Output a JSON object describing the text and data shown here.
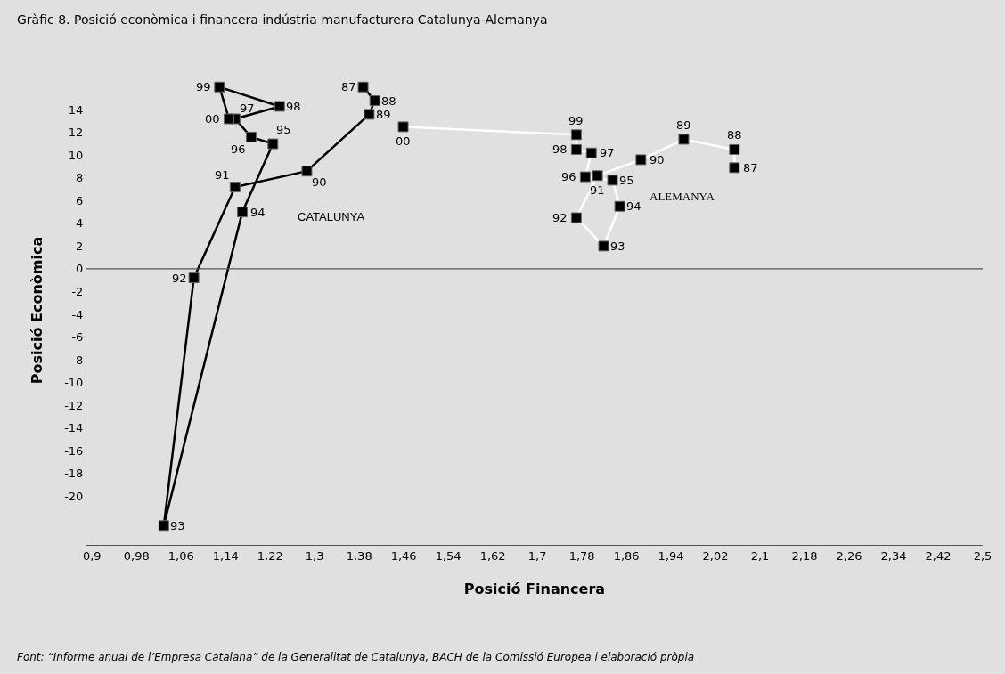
{
  "chart_data": {
    "type": "line",
    "title": "Gràfic 8. Posició econòmica i financera indústria manufacturera Catalunya-Alemanya",
    "xlabel": "Posició Financera",
    "ylabel": "Posició Econòmica",
    "series": [
      {
        "name": "CATALUNYA",
        "color": "#000000",
        "x": [
          1.387,
          1.408,
          1.398,
          1.286,
          1.157,
          1.083,
          1.029,
          1.17,
          1.225,
          1.186,
          1.157,
          1.237,
          1.129,
          1.146
        ],
        "values": [
          16.0,
          14.8,
          13.6,
          8.6,
          7.2,
          -0.8,
          -22.6,
          5.0,
          11.0,
          11.6,
          13.2,
          14.3,
          16.0,
          13.2
        ]
      },
      {
        "name": "ALEMANYA",
        "color": "#ffffff",
        "x": [
          2.054,
          2.054,
          1.963,
          1.886,
          1.808,
          1.77,
          1.819,
          1.848,
          1.835,
          1.786,
          1.797,
          1.77,
          1.77,
          1.459
        ],
        "values": [
          8.9,
          10.5,
          11.4,
          9.6,
          8.2,
          4.5,
          2.0,
          5.5,
          7.8,
          8.1,
          10.2,
          10.5,
          11.8,
          12.5
        ]
      }
    ],
    "xlim": [
      0.89,
      2.5
    ],
    "xticks": [
      {
        "value": 0.9,
        "label": "0,9"
      },
      {
        "value": 0.98,
        "label": "0,98"
      },
      {
        "value": 1.06,
        "label": "1,06"
      },
      {
        "value": 1.14,
        "label": "1,14"
      },
      {
        "value": 1.22,
        "label": "1,22"
      },
      {
        "value": 1.3,
        "label": "1,3"
      },
      {
        "value": 1.38,
        "label": "1,38"
      },
      {
        "value": 1.46,
        "label": "1,46"
      },
      {
        "value": 1.54,
        "label": "1,54"
      },
      {
        "value": 1.62,
        "label": "1,62"
      },
      {
        "value": 1.7,
        "label": "1,7"
      },
      {
        "value": 1.78,
        "label": "1,78"
      },
      {
        "value": 1.86,
        "label": "1,86"
      },
      {
        "value": 1.94,
        "label": "1,94"
      },
      {
        "value": 2.02,
        "label": "2,02"
      },
      {
        "value": 2.1,
        "label": "2,1"
      },
      {
        "value": 2.18,
        "label": "2,18"
      },
      {
        "value": 2.26,
        "label": "2,26"
      },
      {
        "value": 2.34,
        "label": "2,34"
      },
      {
        "value": 2.42,
        "label": "2,42"
      },
      {
        "value": 2.5,
        "label": "2,5"
      }
    ],
    "ylim": [
      -24.3,
      17
    ],
    "yticks": [
      -20,
      -18,
      -16,
      -14,
      -12,
      -10,
      -8,
      -6,
      -4,
      -2,
      0,
      2,
      4,
      6,
      8,
      10,
      12,
      14
    ],
    "ref_lines": [
      {
        "axis": "y",
        "value": 0,
        "color": "#555555"
      }
    ],
    "marker": "square",
    "line_style": "solid",
    "grid": false,
    "legend": false,
    "annotations": [
      {
        "text": "87",
        "x": 1.387,
        "y": 16.0
      },
      {
        "text": "88",
        "x": 1.408,
        "y": 14.8
      },
      {
        "text": "89",
        "x": 1.398,
        "y": 13.6
      },
      {
        "text": "90",
        "x": 1.286,
        "y": 8.6
      },
      {
        "text": "91",
        "x": 1.157,
        "y": 7.2
      },
      {
        "text": "92",
        "x": 1.083,
        "y": -0.8
      },
      {
        "text": "93",
        "x": 1.029,
        "y": -22.6
      },
      {
        "text": "94",
        "x": 1.17,
        "y": 5.0
      },
      {
        "text": "95",
        "x": 1.225,
        "y": 11.0
      },
      {
        "text": "96",
        "x": 1.186,
        "y": 11.6
      },
      {
        "text": "97",
        "x": 1.157,
        "y": 13.2
      },
      {
        "text": "98",
        "x": 1.237,
        "y": 14.3
      },
      {
        "text": "99",
        "x": 1.129,
        "y": 16.0
      },
      {
        "text": "00",
        "x": 1.146,
        "y": 13.2
      },
      {
        "text": "87",
        "x": 2.054,
        "y": 8.9
      },
      {
        "text": "88",
        "x": 2.054,
        "y": 10.5
      },
      {
        "text": "89",
        "x": 1.963,
        "y": 11.4
      },
      {
        "text": "90",
        "x": 1.886,
        "y": 9.6
      },
      {
        "text": "91",
        "x": 1.808,
        "y": 8.2
      },
      {
        "text": "92",
        "x": 1.77,
        "y": 4.5
      },
      {
        "text": "93",
        "x": 1.819,
        "y": 2.0
      },
      {
        "text": "94",
        "x": 1.848,
        "y": 5.5
      },
      {
        "text": "95",
        "x": 1.835,
        "y": 7.8
      },
      {
        "text": "96",
        "x": 1.786,
        "y": 8.1
      },
      {
        "text": "97",
        "x": 1.797,
        "y": 10.2
      },
      {
        "text": "98",
        "x": 1.77,
        "y": 10.5
      },
      {
        "text": "99",
        "x": 1.77,
        "y": 11.8
      },
      {
        "text": "00",
        "x": 1.459,
        "y": 12.5
      },
      "Font: “Informe anual de l’Empresa Catalana” de la Generalitat de Catalunya, BACH de la Comissió Europea i elaboració pròpia"
    ]
  }
}
